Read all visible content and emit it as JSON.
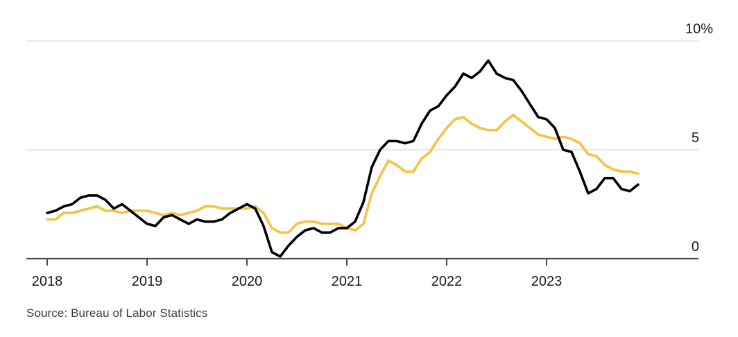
{
  "source": {
    "label": "Source: Bureau of Labor Statistics"
  },
  "chart_data": {
    "type": "line",
    "title": "",
    "subtitle": "",
    "legend": "none",
    "x_unit": "month",
    "x_range": [
      "2018-01",
      "2023-12"
    ],
    "x_tick_labels": [
      "2018",
      "2019",
      "2020",
      "2021",
      "2022",
      "2023"
    ],
    "y_ticks": [
      0,
      5,
      10
    ],
    "y_tick_labels": [
      "0",
      "5",
      "10%"
    ],
    "ylim": [
      0,
      10
    ],
    "grid": "horizontal-only",
    "y_label_side": "right",
    "colors": {
      "axis": "#4a4a4a",
      "gridline": "#e8e8e8",
      "tick_label": "#1a1a1a",
      "series_black": "#000000",
      "series_gold": "#f5c342"
    },
    "series": [
      {
        "name": "headline-cpi-yoy",
        "color": "#000000",
        "values": [
          2.1,
          2.2,
          2.4,
          2.5,
          2.8,
          2.9,
          2.9,
          2.7,
          2.3,
          2.5,
          2.2,
          1.9,
          1.6,
          1.5,
          1.9,
          2.0,
          1.8,
          1.6,
          1.8,
          1.7,
          1.7,
          1.8,
          2.1,
          2.3,
          2.5,
          2.3,
          1.5,
          0.3,
          0.1,
          0.6,
          1.0,
          1.3,
          1.4,
          1.2,
          1.2,
          1.4,
          1.4,
          1.7,
          2.6,
          4.2,
          5.0,
          5.4,
          5.4,
          5.3,
          5.4,
          6.2,
          6.8,
          7.0,
          7.5,
          7.9,
          8.5,
          8.3,
          8.6,
          9.1,
          8.5,
          8.3,
          8.2,
          7.7,
          7.1,
          6.5,
          6.4,
          6.0,
          5.0,
          4.9,
          4.0,
          3.0,
          3.2,
          3.7,
          3.7,
          3.2,
          3.1,
          3.4
        ]
      },
      {
        "name": "core-cpi-yoy",
        "color": "#f5c342",
        "values": [
          1.8,
          1.8,
          2.1,
          2.1,
          2.2,
          2.3,
          2.4,
          2.2,
          2.2,
          2.1,
          2.2,
          2.2,
          2.2,
          2.1,
          2.0,
          2.1,
          2.0,
          2.1,
          2.2,
          2.4,
          2.4,
          2.3,
          2.3,
          2.3,
          2.3,
          2.4,
          2.1,
          1.4,
          1.2,
          1.2,
          1.6,
          1.7,
          1.7,
          1.6,
          1.6,
          1.6,
          1.4,
          1.3,
          1.6,
          3.0,
          3.8,
          4.5,
          4.3,
          4.0,
          4.0,
          4.6,
          4.9,
          5.5,
          6.0,
          6.4,
          6.5,
          6.2,
          6.0,
          5.9,
          5.9,
          6.3,
          6.6,
          6.3,
          6.0,
          5.7,
          5.6,
          5.5,
          5.6,
          5.5,
          5.3,
          4.8,
          4.7,
          4.3,
          4.1,
          4.0,
          4.0,
          3.9
        ]
      }
    ]
  }
}
